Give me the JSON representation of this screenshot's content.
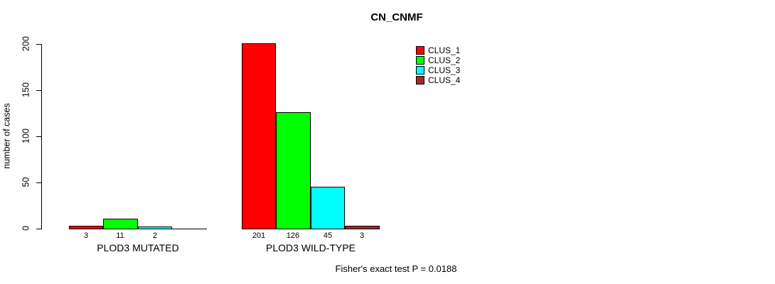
{
  "chart_data": {
    "type": "bar",
    "title": "CN_CNMF",
    "ylabel": "number of cases",
    "ylim": [
      0,
      200
    ],
    "yticks": [
      0,
      50,
      100,
      150,
      200
    ],
    "grid": false,
    "categories": [
      "PLOD3 MUTATED",
      "PLOD3 WILD-TYPE"
    ],
    "series": [
      {
        "name": "CLUS_1",
        "color": "#ff0000",
        "values": [
          3,
          201
        ]
      },
      {
        "name": "CLUS_2",
        "color": "#00ff00",
        "values": [
          11,
          126
        ]
      },
      {
        "name": "CLUS_3",
        "color": "#00ffff",
        "values": [
          2,
          45
        ]
      },
      {
        "name": "CLUS_4",
        "color": "#a52a2a",
        "values": [
          0,
          3
        ]
      }
    ],
    "bar_labels": [
      [
        "3",
        "11",
        "2",
        ""
      ],
      [
        "201",
        "126",
        "45",
        "3"
      ]
    ],
    "legend": {
      "position": "top-right",
      "entries": [
        "CLUS_1",
        "CLUS_2",
        "CLUS_3",
        "CLUS_4"
      ]
    },
    "annotation": "Fisher's exact test P = 0.0188"
  }
}
